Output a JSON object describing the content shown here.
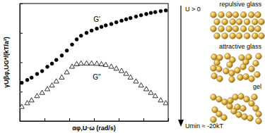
{
  "chart_data": {
    "type": "scatter",
    "x_label": "αφ,U·ω (rad/s)",
    "y_label": "γUβφ,UG*/(kT/a³)",
    "log": true,
    "tick_labels": false,
    "xlim": [
      0.001,
      1000
    ],
    "ylim": [
      0.001,
      10
    ],
    "xticks": [
      0.001,
      0.01,
      0.1,
      1,
      10,
      100,
      1000
    ],
    "yticks": [
      0.001,
      0.01,
      0.1,
      1,
      10
    ],
    "x": [
      0.0012,
      0.002,
      0.003,
      0.005,
      0.008,
      0.013,
      0.02,
      0.03,
      0.05,
      0.08,
      0.13,
      0.2,
      0.3,
      0.5,
      0.8,
      1.3,
      2,
      3,
      5,
      8,
      13,
      20,
      30,
      50,
      80,
      130,
      200,
      300,
      500,
      800
    ],
    "series": [
      {
        "name": "G'",
        "color": "#000000",
        "marker": "circle",
        "values": [
          0.02,
          0.025,
          0.03,
          0.04,
          0.05,
          0.07,
          0.09,
          0.12,
          0.17,
          0.25,
          0.4,
          0.6,
          0.8,
          1.0,
          1.2,
          1.4,
          1.6,
          1.8,
          2.0,
          2.3,
          2.6,
          2.9,
          3.2,
          3.6,
          4.0,
          4.4,
          4.8,
          5.1,
          5.5,
          5.8
        ]
      },
      {
        "name": "G\"",
        "color": "#000000",
        "marker": "triangle-open",
        "values": [
          0.003,
          0.004,
          0.005,
          0.007,
          0.009,
          0.012,
          0.016,
          0.022,
          0.03,
          0.045,
          0.07,
          0.085,
          0.09,
          0.09,
          0.09,
          0.088,
          0.085,
          0.08,
          0.07,
          0.06,
          0.05,
          0.04,
          0.03,
          0.022,
          0.016,
          0.012,
          0.009,
          0.007,
          0.005,
          0.004
        ]
      }
    ]
  },
  "diagram": {
    "top_label": "U > 0",
    "bottom_label": "Umin ≈ -20kT",
    "states": [
      "repulsive glass",
      "attractive glass",
      "gel"
    ]
  }
}
